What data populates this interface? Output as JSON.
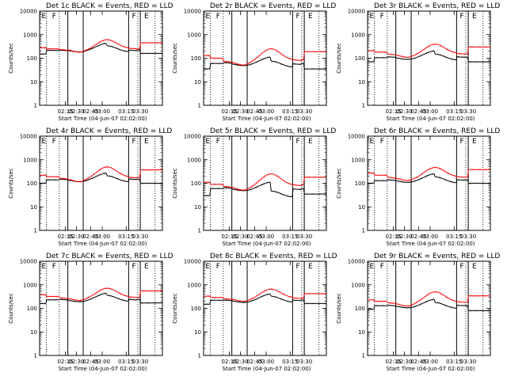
{
  "chart_data": [
    {
      "type": "line",
      "title": "Det 1c BLACK = Events, RED = LLD",
      "xlabel": "Start Time (04-Jun-07 02:02:00)",
      "ylabel": "Counts/sec",
      "yscale": "log",
      "ylim": [
        1,
        10000
      ],
      "x_ticks": [
        "02:15",
        "02:30",
        "02:45",
        "03:00",
        "03:15",
        "03:30"
      ],
      "y_ticks": [
        "1",
        "10",
        "100",
        "1000",
        "10000"
      ],
      "flags": [
        "E",
        "F",
        "F",
        "E"
      ],
      "series": [
        {
          "color": "#000000",
          "levels": [
            150,
            215,
            220,
            225,
            230,
            180,
            210,
            225,
            160
          ],
          "amp": 0.3
        },
        {
          "color": "#ff0000",
          "levels": [
            280,
            250,
            235,
            245,
            255,
            255,
            250,
            245,
            450
          ],
          "amp": 0.42
        }
      ]
    },
    {
      "type": "line",
      "title": "Det 2r BLACK = Events, RED = LLD",
      "xlabel": "Start Time (04-Jun-07 02:02:00)",
      "ylabel": "Counts/sec",
      "yscale": "log",
      "ylim": [
        1,
        10000
      ],
      "x_ticks": [
        "02:15",
        "02:30",
        "02:45",
        "03:00",
        "03:15",
        "03:30"
      ],
      "y_ticks": [
        "1",
        "10",
        "100",
        "1000",
        "10000"
      ],
      "flags": [
        "E",
        "F",
        "F",
        "E"
      ],
      "series": [
        {
          "color": "#000000",
          "levels": [
            35,
            60,
            65,
            60,
            60,
            40,
            55,
            60,
            35
          ],
          "amp": 0.3
        },
        {
          "color": "#ff0000",
          "levels": [
            130,
            100,
            75,
            75,
            80,
            80,
            80,
            85,
            190
          ],
          "amp": 0.55
        }
      ]
    },
    {
      "type": "line",
      "title": "Det 3r BLACK = Events, RED = LLD",
      "xlabel": "Start Time (04-Jun-07 02:02:00)",
      "ylabel": "Counts/sec",
      "yscale": "log",
      "ylim": [
        1,
        10000
      ],
      "x_ticks": [
        "02:15",
        "02:30",
        "02:45",
        "03:00",
        "03:15",
        "03:30"
      ],
      "y_ticks": [
        "1",
        "10",
        "100",
        "1000",
        "10000"
      ],
      "flags": [
        "E",
        "F",
        "F",
        "E"
      ],
      "series": [
        {
          "color": "#000000",
          "levels": [
            70,
            105,
            115,
            110,
            110,
            80,
            110,
            110,
            70
          ],
          "amp": 0.3
        },
        {
          "color": "#ff0000",
          "levels": [
            210,
            180,
            150,
            150,
            155,
            155,
            150,
            150,
            300
          ],
          "amp": 0.45
        }
      ]
    },
    {
      "type": "line",
      "title": "Det 4r BLACK = Events, RED = LLD",
      "xlabel": "Start Time (04-Jun-07 02:02:00)",
      "ylabel": "Counts/sec",
      "yscale": "log",
      "ylim": [
        1,
        10000
      ],
      "x_ticks": [
        "02:15",
        "02:30",
        "02:45",
        "03:00",
        "03:15",
        "03:30"
      ],
      "y_ticks": [
        "1",
        "10",
        "100",
        "1000",
        "10000"
      ],
      "flags": [
        "E",
        "F",
        "F",
        "E"
      ],
      "series": [
        {
          "color": "#000000",
          "levels": [
            100,
            140,
            150,
            145,
            145,
            110,
            145,
            145,
            100
          ],
          "amp": 0.3
        },
        {
          "color": "#ff0000",
          "levels": [
            220,
            190,
            165,
            165,
            175,
            175,
            170,
            170,
            370
          ],
          "amp": 0.5
        }
      ]
    },
    {
      "type": "line",
      "title": "Det 5r BLACK = Events, RED = LLD",
      "xlabel": "Start Time (04-Jun-07 02:02:00)",
      "ylabel": "Counts/sec",
      "yscale": "log",
      "ylim": [
        1,
        10000
      ],
      "x_ticks": [
        "02:15",
        "02:30",
        "02:45",
        "03:00",
        "03:15",
        "03:30"
      ],
      "y_ticks": [
        "1",
        "10",
        "100",
        "1000",
        "10000"
      ],
      "flags": [
        "E",
        "F",
        "F",
        "E"
      ],
      "series": [
        {
          "color": "#000000",
          "levels": [
            30,
            60,
            65,
            60,
            60,
            25,
            55,
            60,
            35
          ],
          "amp": 0.3
        },
        {
          "color": "#ff0000",
          "levels": [
            110,
            90,
            75,
            75,
            80,
            80,
            80,
            85,
            180
          ],
          "amp": 0.55
        }
      ]
    },
    {
      "type": "line",
      "title": "Det 6r BLACK = Events, RED = LLD",
      "xlabel": "Start Time (04-Jun-07 02:02:00)",
      "ylabel": "Counts/sec",
      "yscale": "log",
      "ylim": [
        1,
        10000
      ],
      "x_ticks": [
        "02:15",
        "02:30",
        "02:45",
        "03:00",
        "03:15",
        "03:30"
      ],
      "y_ticks": [
        "1",
        "10",
        "100",
        "1000",
        "10000"
      ],
      "flags": [
        "E",
        "F",
        "F",
        "E"
      ],
      "series": [
        {
          "color": "#000000",
          "levels": [
            100,
            130,
            140,
            135,
            135,
            100,
            135,
            140,
            100
          ],
          "amp": 0.3
        },
        {
          "color": "#ff0000",
          "levels": [
            270,
            220,
            180,
            180,
            185,
            185,
            180,
            180,
            380
          ],
          "amp": 0.45
        }
      ]
    },
    {
      "type": "line",
      "title": "Det 7c BLACK = Events, RED = LLD",
      "xlabel": "Start Time (04-Jun-07 02:02:00)",
      "ylabel": "Counts/sec",
      "yscale": "log",
      "ylim": [
        1,
        10000
      ],
      "x_ticks": [
        "02:15",
        "02:30",
        "02:45",
        "03:00",
        "03:15",
        "03:30"
      ],
      "y_ticks": [
        "1",
        "10",
        "100",
        "1000",
        "10000"
      ],
      "flags": [
        "E",
        "F",
        "F",
        "E"
      ],
      "series": [
        {
          "color": "#000000",
          "levels": [
            160,
            230,
            240,
            235,
            235,
            190,
            230,
            240,
            170
          ],
          "amp": 0.3
        },
        {
          "color": "#ff0000",
          "levels": [
            380,
            320,
            280,
            290,
            300,
            300,
            290,
            290,
            550
          ],
          "amp": 0.42
        }
      ]
    },
    {
      "type": "line",
      "title": "Det 8c BLACK = Events, RED = LLD",
      "xlabel": "Start Time (04-Jun-07 02:02:00)",
      "ylabel": "Counts/sec",
      "yscale": "log",
      "ylim": [
        1,
        10000
      ],
      "x_ticks": [
        "02:15",
        "02:30",
        "02:45",
        "03:00",
        "03:15",
        "03:30"
      ],
      "y_ticks": [
        "1",
        "10",
        "100",
        "1000",
        "10000"
      ],
      "flags": [
        "E",
        "F",
        "F",
        "E"
      ],
      "series": [
        {
          "color": "#000000",
          "levels": [
            150,
            220,
            225,
            220,
            220,
            175,
            215,
            225,
            160
          ],
          "amp": 0.3
        },
        {
          "color": "#ff0000",
          "levels": [
            330,
            290,
            260,
            265,
            275,
            275,
            265,
            265,
            420
          ],
          "amp": 0.42
        }
      ]
    },
    {
      "type": "line",
      "title": "Det 9r BLACK = Events, RED = LLD",
      "xlabel": "Start Time (04-Jun-07 02:02:00)",
      "ylabel": "Counts/sec",
      "yscale": "log",
      "ylim": [
        1,
        10000
      ],
      "x_ticks": [
        "02:15",
        "02:30",
        "02:45",
        "03:00",
        "03:15",
        "03:30"
      ],
      "y_ticks": [
        "1",
        "10",
        "100",
        "1000",
        "10000"
      ],
      "flags": [
        "E",
        "F",
        "F",
        "E"
      ],
      "series": [
        {
          "color": "#000000",
          "levels": [
            90,
            130,
            135,
            130,
            130,
            95,
            130,
            130,
            80
          ],
          "amp": 0.3
        },
        {
          "color": "#ff0000",
          "levels": [
            230,
            200,
            175,
            175,
            185,
            185,
            180,
            180,
            340
          ],
          "amp": 0.48
        }
      ]
    }
  ]
}
